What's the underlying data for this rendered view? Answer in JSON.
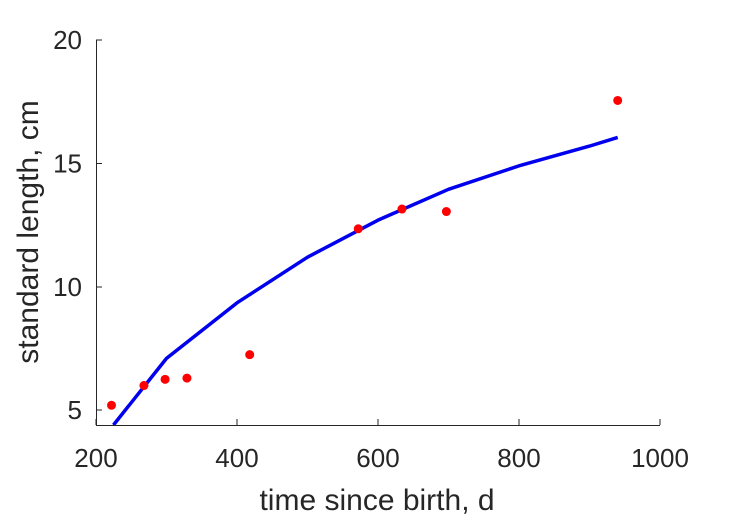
{
  "chart_data": {
    "type": "scatter",
    "title": "",
    "xlabel": "time since birth, d",
    "ylabel": "standard length, cm",
    "xlim": [
      200,
      1000
    ],
    "ylim": [
      4.4,
      20
    ],
    "xticks": [
      200,
      400,
      600,
      800,
      1000
    ],
    "yticks": [
      5,
      10,
      15,
      20
    ],
    "xtick_labels": [
      "200",
      "400",
      "600",
      "800",
      "1000"
    ],
    "ytick_labels": [
      "5",
      "10",
      "15",
      "20"
    ],
    "grid": false,
    "legend": "none",
    "series": [
      {
        "kind": "scatter",
        "color": "#ff0000",
        "x": [
          222,
          268,
          298,
          329,
          418,
          572,
          634,
          697,
          940
        ],
        "y": [
          5.2,
          6.0,
          6.25,
          6.3,
          7.25,
          12.35,
          13.15,
          13.05,
          17.55
        ]
      },
      {
        "kind": "line",
        "color": "#0000ee",
        "x": [
          222,
          300,
          400,
          500,
          600,
          700,
          800,
          900,
          940
        ],
        "y": [
          4.3,
          7.1,
          9.35,
          11.2,
          12.7,
          13.95,
          14.9,
          15.7,
          16.05
        ]
      }
    ]
  }
}
